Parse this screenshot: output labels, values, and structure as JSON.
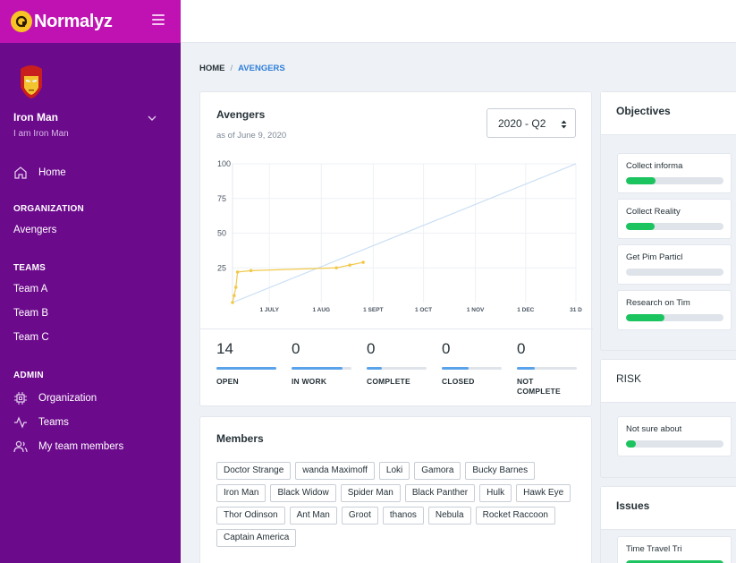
{
  "app": {
    "name": "Normalyz"
  },
  "user": {
    "name": "Iron Man",
    "subtitle": "I am Iron Man"
  },
  "nav": {
    "home": "Home",
    "organization_header": "ORGANIZATION",
    "organization_item": "Avengers",
    "teams_header": "TEAMS",
    "teams": [
      "Team A",
      "Team B",
      "Team C"
    ],
    "admin_header": "ADMIN",
    "admin": [
      "Organization",
      "Teams",
      "My team members"
    ]
  },
  "breadcrumb": {
    "home": "HOME",
    "separator": "/",
    "current": "AVENGERS"
  },
  "progress_card": {
    "title": "Avengers",
    "subtitle": "as of June 9, 2020",
    "quarter_select": "2020 - Q2"
  },
  "chart_data": {
    "type": "line",
    "title": "",
    "xlabel": "",
    "ylabel": "",
    "ylim": [
      0,
      100
    ],
    "y_ticks": [
      25,
      50,
      75,
      100
    ],
    "x_ticks": [
      "1 JULY",
      "1 AUG",
      "1 SEPT",
      "1 OCT",
      "1 NOV",
      "1 DEC",
      "31 D"
    ],
    "grid": true,
    "series": [
      {
        "color": "#f2c94c",
        "points": [
          {
            "x": "2020-06-09",
            "y": 0
          },
          {
            "x": "2020-06-10",
            "y": 5
          },
          {
            "x": "2020-06-11",
            "y": 11
          },
          {
            "x": "2020-06-12",
            "y": 22
          },
          {
            "x": "2020-06-20",
            "y": 23
          },
          {
            "x": "2020-08-10",
            "y": 25
          },
          {
            "x": "2020-08-18",
            "y": 27
          },
          {
            "x": "2020-08-26",
            "y": 29
          }
        ]
      },
      {
        "color": "#c9def4",
        "points": [
          {
            "x": "2020-06-09",
            "y": 0
          },
          {
            "x": "2020-12-31",
            "y": 100
          }
        ]
      }
    ]
  },
  "stats": [
    {
      "value": "14",
      "label": "OPEN",
      "fill": 1.0
    },
    {
      "value": "0",
      "label": "IN WORK",
      "fill": 0.85
    },
    {
      "value": "0",
      "label": "COMPLETE",
      "fill": 0.25
    },
    {
      "value": "0",
      "label": "CLOSED",
      "fill": 0.45
    },
    {
      "value": "0",
      "label": "NOT COMPLETE",
      "fill": 0.3
    }
  ],
  "members": {
    "title": "Members",
    "list": [
      "Doctor Strange",
      "wanda Maximoff",
      "Loki",
      "Gamora",
      "Bucky Barnes",
      "Iron Man",
      "Black Widow",
      "Spider Man",
      "Black Panther",
      "Hulk",
      "Hawk Eye",
      "Thor Odinson",
      "Ant Man",
      "Groot",
      "thanos",
      "Nebula",
      "Rocket Raccoon",
      "Captain America"
    ]
  },
  "objectives": {
    "title": "Objectives",
    "items": [
      {
        "label": "Collect informa",
        "progress": 0.3
      },
      {
        "label": "Collect Reality",
        "progress": 0.29
      },
      {
        "label": "Get Pim Particl",
        "progress": 0.0
      },
      {
        "label": "Research on Tim",
        "progress": 0.39
      }
    ]
  },
  "risk": {
    "title": "RISK",
    "items": [
      {
        "label": "Not sure about",
        "progress": 0.1
      }
    ]
  },
  "issues": {
    "title": "Issues",
    "items": [
      {
        "label": "Time Travel Tri"
      }
    ]
  },
  "colors": {
    "sidebar": "#6c0a8c",
    "brand_bar": "#c012b3",
    "accent_blue": "#2f7fd9",
    "progress_green": "#1cc45f"
  }
}
